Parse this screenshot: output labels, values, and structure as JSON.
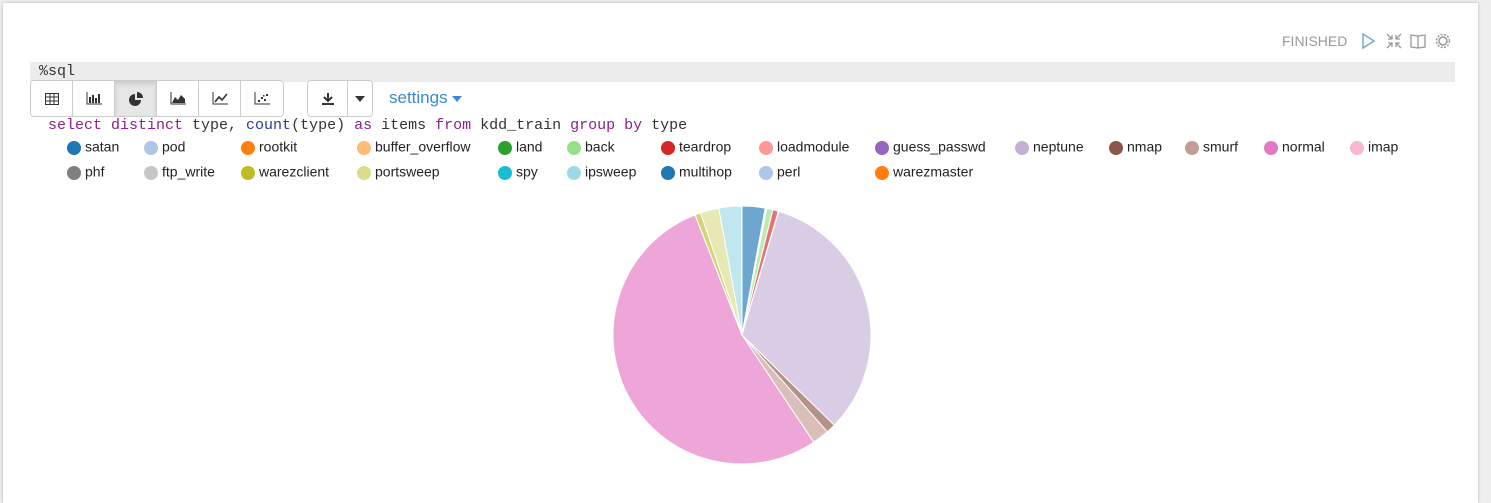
{
  "paragraph": {
    "interpreter": "%sql",
    "code_tokens": [
      {
        "text": "select ",
        "color": "#8a1f8a"
      },
      {
        "text": "distinct ",
        "color": "#8a1f8a"
      },
      {
        "text": "type, ",
        "color": "#333333"
      },
      {
        "text": "count",
        "color": "#2a3a9a"
      },
      {
        "text": "(type) ",
        "color": "#333333"
      },
      {
        "text": "as ",
        "color": "#8a1f8a"
      },
      {
        "text": "items ",
        "color": "#333333"
      },
      {
        "text": "from ",
        "color": "#8a1f8a"
      },
      {
        "text": "kdd_train ",
        "color": "#333333"
      },
      {
        "text": "group ",
        "color": "#8a1f8a"
      },
      {
        "text": "by ",
        "color": "#8a1f8a"
      },
      {
        "text": "type",
        "color": "#333333"
      }
    ],
    "status": "FINISHED",
    "settings_label": "settings"
  },
  "chart_data": {
    "type": "pie",
    "categories": [
      "satan",
      "pod",
      "rootkit",
      "buffer_overflow",
      "land",
      "back",
      "teardrop",
      "loadmodule",
      "guess_passwd",
      "neptune",
      "nmap",
      "smurf",
      "normal",
      "imap",
      "phf",
      "ftp_write",
      "warezclient",
      "portsweep",
      "spy",
      "ipsweep",
      "multihop",
      "perl",
      "warezmaster"
    ],
    "values": [
      3633,
      201,
      10,
      30,
      18,
      956,
      892,
      9,
      53,
      41214,
      1493,
      2646,
      67343,
      11,
      4,
      8,
      890,
      2931,
      2,
      3599,
      7,
      3,
      20
    ],
    "colors": [
      "#1f77b4",
      "#aec7e8",
      "#ff7f0e",
      "#ffbb78",
      "#2ca02c",
      "#98df8a",
      "#d62728",
      "#ff9896",
      "#9467bd",
      "#c5b0d5",
      "#8c564b",
      "#c49c94",
      "#e377c2",
      "#f7b6d2",
      "#7f7f7f",
      "#c7c7c7",
      "#bcbd22",
      "#dbdb8d",
      "#17becf",
      "#9edae5",
      "#1f77b4",
      "#aec7e8",
      "#ff7f0e"
    ]
  }
}
